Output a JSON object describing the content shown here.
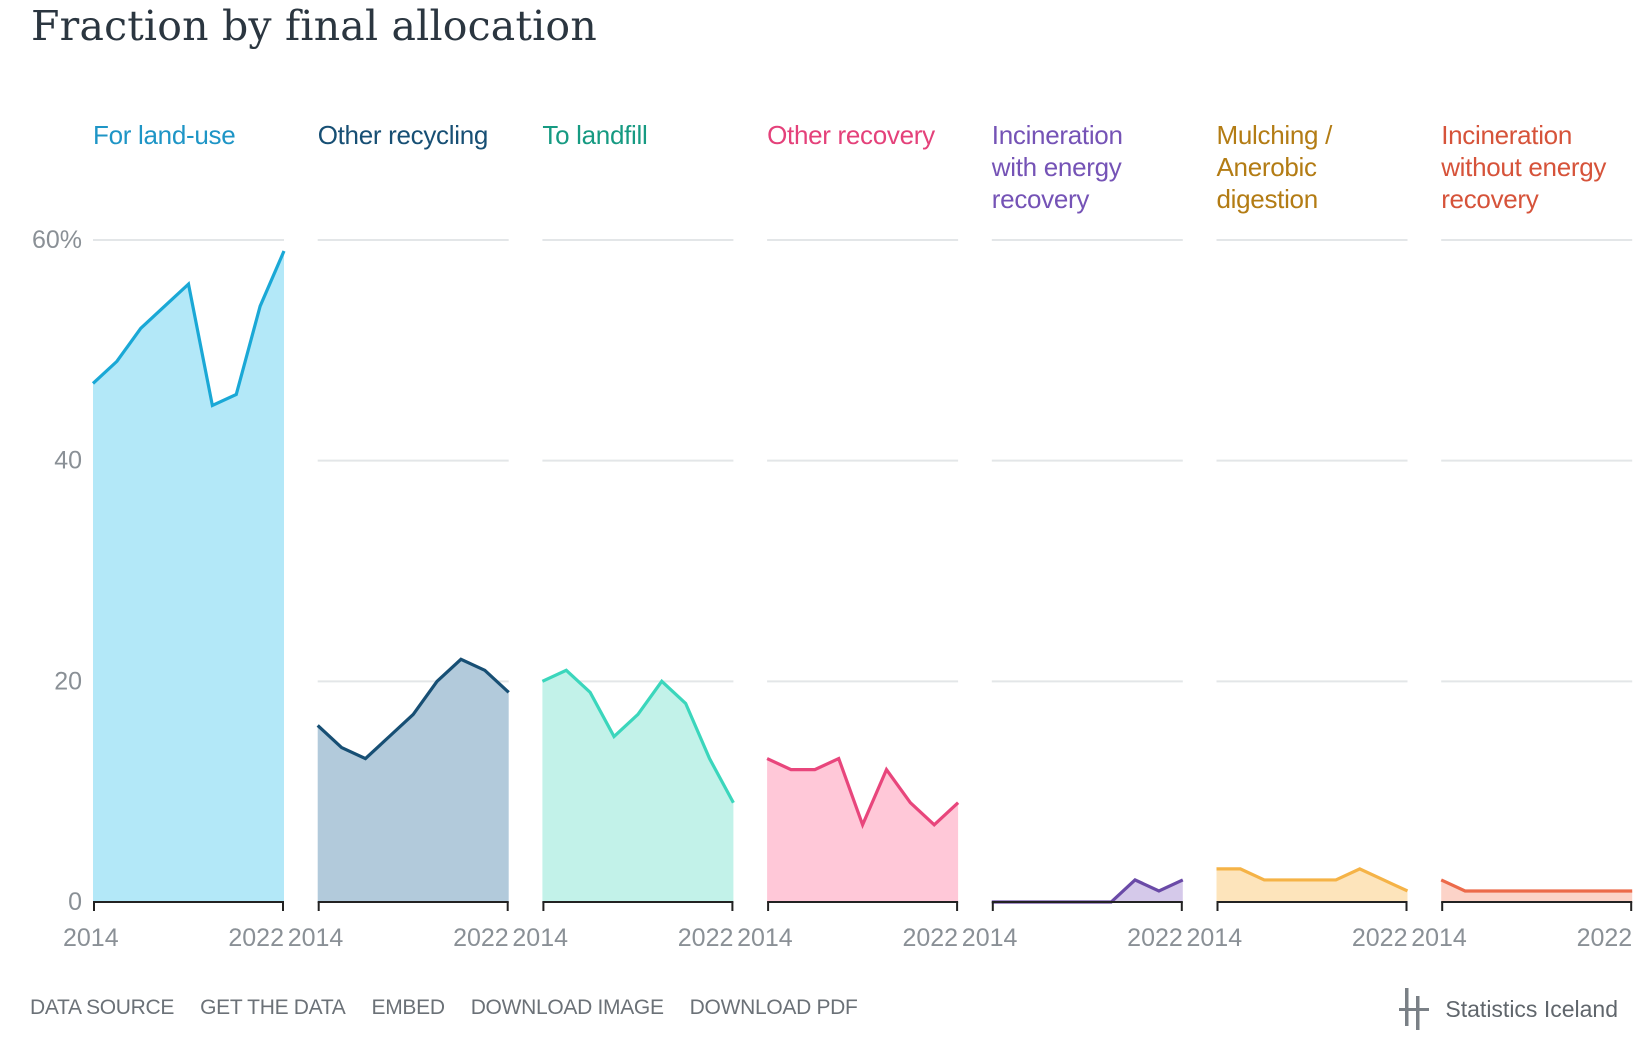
{
  "title": "Fraction by final allocation",
  "footer": {
    "links": [
      "DATA SOURCE",
      "GET THE DATA",
      "EMBED",
      "DOWNLOAD IMAGE",
      "DOWNLOAD PDF"
    ],
    "brand": "Statistics Iceland",
    "brand_icon": "statistics-iceland-logo-icon"
  },
  "chart_data": {
    "type": "area",
    "layout": "small-multiples",
    "x": [
      2014,
      2015,
      2016,
      2017,
      2018,
      2019,
      2020,
      2021,
      2022
    ],
    "xticks": [
      "2014",
      "2022"
    ],
    "ylim": [
      0,
      60
    ],
    "yticks": [
      "0",
      "20",
      "40",
      "60%"
    ],
    "grid": true,
    "series": [
      {
        "name": "For land-use",
        "title_lines": [
          "For land-use"
        ],
        "values": [
          47,
          49,
          52,
          54,
          56,
          45,
          46,
          54,
          59
        ],
        "line_color": "#1aa8d6",
        "fill_color": "#b3e8f8",
        "label_color": "#1e95c6"
      },
      {
        "name": "Other recycling",
        "title_lines": [
          "Other recycling"
        ],
        "values": [
          16,
          14,
          13,
          15,
          17,
          20,
          22,
          21,
          19
        ],
        "line_color": "#174f74",
        "fill_color": "#b2cadb",
        "label_color": "#174f74"
      },
      {
        "name": "To landfill",
        "title_lines": [
          "To landfill"
        ],
        "values": [
          20,
          21,
          19,
          15,
          17,
          20,
          18,
          13,
          9
        ],
        "line_color": "#3bd6bc",
        "fill_color": "#c2f2e9",
        "label_color": "#169a82"
      },
      {
        "name": "Other recovery",
        "title_lines": [
          "Other recovery"
        ],
        "values": [
          13,
          12,
          12,
          13,
          7,
          12,
          9,
          7,
          9
        ],
        "line_color": "#e8467c",
        "fill_color": "#ffc8d8",
        "label_color": "#e4417a"
      },
      {
        "name": "Incineration with energy recovery",
        "title_lines": [
          "Incineration",
          "with energy",
          "recovery"
        ],
        "values": [
          0,
          0,
          0,
          0,
          0,
          0,
          2,
          1,
          2
        ],
        "line_color": "#6a4aa7",
        "fill_color": "#d5c9ea",
        "label_color": "#7553b6"
      },
      {
        "name": "Mulching / Anerobic digestion",
        "title_lines": [
          "Mulching /",
          "Anerobic",
          "digestion"
        ],
        "values": [
          3,
          3,
          2,
          2,
          2,
          2,
          3,
          2,
          1
        ],
        "line_color": "#f5b347",
        "fill_color": "#fde4bb",
        "label_color": "#b37c14"
      },
      {
        "name": "Incineration without energy recovery",
        "title_lines": [
          "Incineration",
          "without energy",
          "recovery"
        ],
        "values": [
          2,
          1,
          1,
          1,
          1,
          1,
          1,
          1,
          1
        ],
        "line_color": "#ec6a4a",
        "fill_color": "#fcd3c8",
        "label_color": "#d6533a"
      }
    ]
  }
}
